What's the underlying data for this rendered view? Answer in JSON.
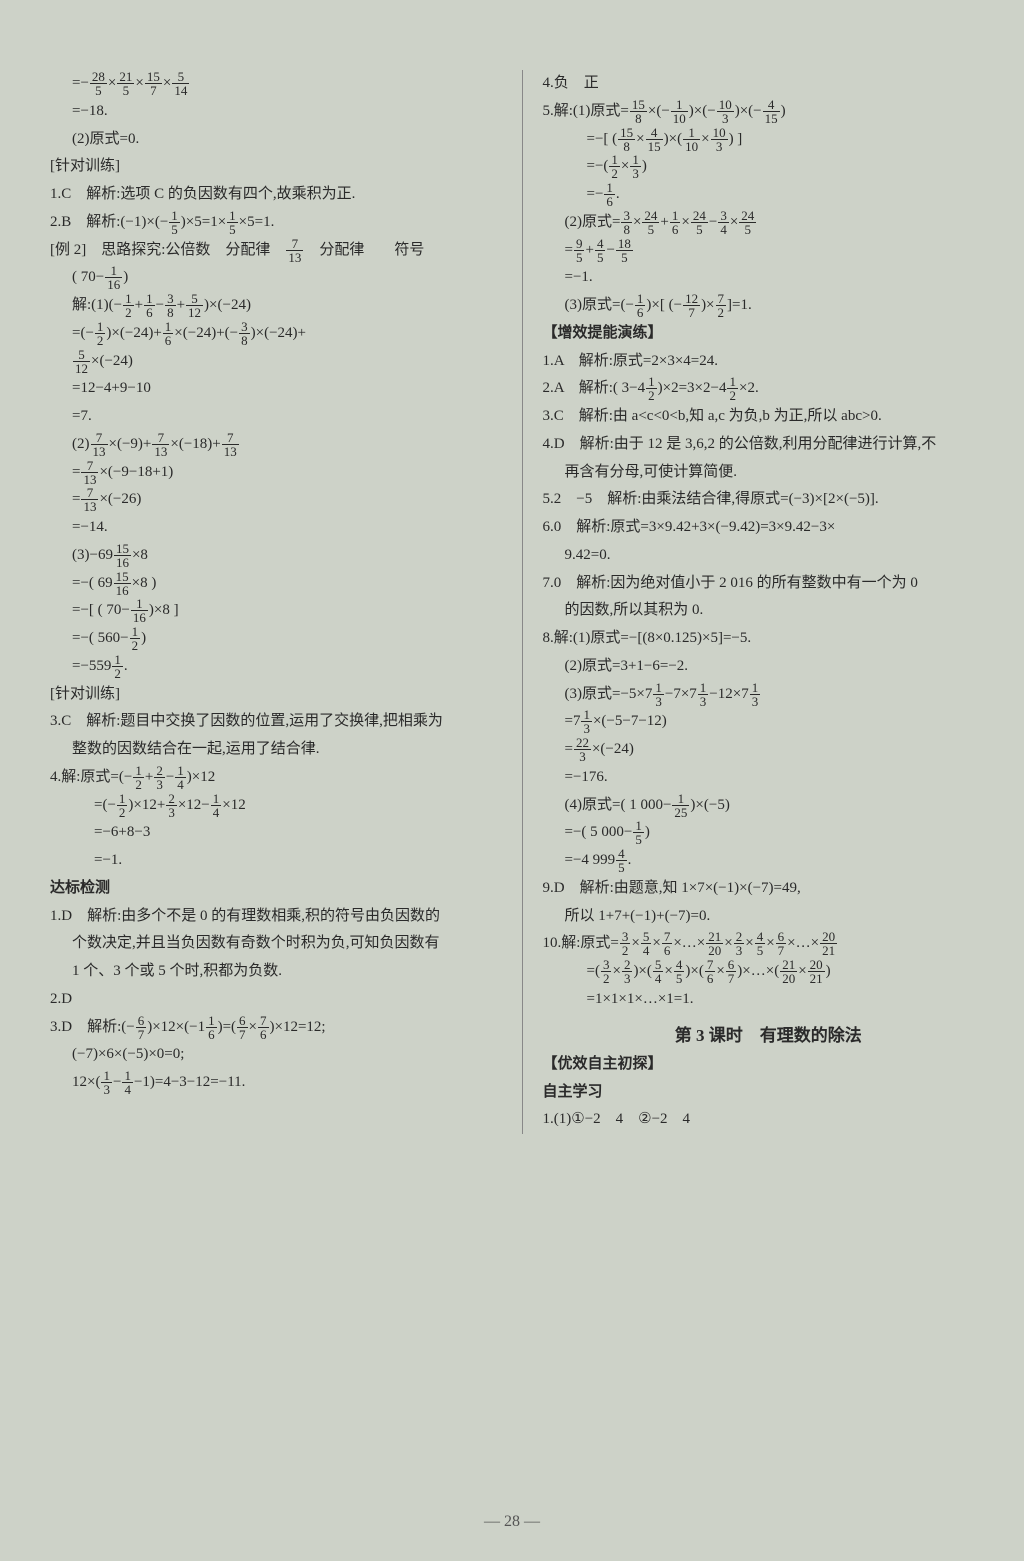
{
  "page_number": "— 28 —",
  "colors": {
    "bg": "#cdd2c8",
    "text": "#2a2a2a",
    "divider": "#888"
  },
  "left": [
    {
      "cls": "indent1",
      "t": "=− 28/5 × 21/5 × 15/7 × 5/14"
    },
    {
      "cls": "indent1",
      "t": "=−18."
    },
    {
      "cls": "indent1",
      "t": "(2)原式=0."
    },
    {
      "cls": "",
      "t": "[针对训练]"
    },
    {
      "cls": "",
      "t": "1.C　解析:选项 C 的负因数有四个,故乘积为正."
    },
    {
      "cls": "",
      "t": "2.B　解析:(−1)×(− 1/5 )×5=1× 1/5 ×5=1."
    },
    {
      "cls": "",
      "t": "[例 2]　思路探究:公倍数　分配律　 7/13 　分配律　　符号"
    },
    {
      "cls": "indent1",
      "t": "( 70− 1/16 )"
    },
    {
      "cls": "indent1",
      "t": "解:(1)(− 1/2 + 1/6 − 3/8 + 5/12 )×(−24)"
    },
    {
      "cls": "indent1",
      "t": "=(− 1/2 )×(−24)+ 1/6 ×(−24)+(− 3/8 )×(−24)+"
    },
    {
      "cls": "indent1",
      "t": " 5/12 ×(−24)"
    },
    {
      "cls": "indent1",
      "t": "=12−4+9−10"
    },
    {
      "cls": "indent1",
      "t": "=7."
    },
    {
      "cls": "indent1",
      "t": "(2) 7/13 ×(−9)+ 7/13 ×(−18)+ 7/13"
    },
    {
      "cls": "indent1",
      "t": "= 7/13 ×(−9−18+1)"
    },
    {
      "cls": "indent1",
      "t": "= 7/13 ×(−26)"
    },
    {
      "cls": "indent1",
      "t": "=−14."
    },
    {
      "cls": "indent1",
      "t": "(3)−69 15/16 ×8"
    },
    {
      "cls": "indent1",
      "t": "=−( 69 15/16 ×8 )"
    },
    {
      "cls": "indent1",
      "t": "=−[ ( 70− 1/16 )×8 ]"
    },
    {
      "cls": "indent1",
      "t": "=−( 560− 1/2 )"
    },
    {
      "cls": "indent1",
      "t": "=−559 1/2 ."
    },
    {
      "cls": "",
      "t": "[针对训练]"
    },
    {
      "cls": "",
      "t": "3.C　解析:题目中交换了因数的位置,运用了交换律,把相乘为"
    },
    {
      "cls": "indent1",
      "t": "整数的因数结合在一起,运用了结合律."
    },
    {
      "cls": "",
      "t": "4.解:原式=(− 1/2 + 2/3 − 1/4 )×12"
    },
    {
      "cls": "indent2",
      "t": "=(− 1/2 )×12+ 2/3 ×12− 1/4 ×12"
    },
    {
      "cls": "indent2",
      "t": "=−6+8−3"
    },
    {
      "cls": "indent2",
      "t": "=−1."
    },
    {
      "cls": "bold",
      "t": "达标检测"
    },
    {
      "cls": "",
      "t": "1.D　解析:由多个不是 0 的有理数相乘,积的符号由负因数的"
    },
    {
      "cls": "indent1",
      "t": "个数决定,并且当负因数有奇数个时积为负,可知负因数有"
    },
    {
      "cls": "indent1",
      "t": "1 个、3 个或 5 个时,积都为负数."
    },
    {
      "cls": "",
      "t": "2.D"
    },
    {
      "cls": "",
      "t": "3.D　解析:(− 6/7 )×12×(−1 1/6 )=( 6/7 × 7/6 )×12=12;"
    },
    {
      "cls": "indent1",
      "t": "(−7)×6×(−5)×0=0;"
    },
    {
      "cls": "indent1",
      "t": "12×( 1/3 − 1/4 −1)=4−3−12=−11."
    }
  ],
  "right": [
    {
      "cls": "",
      "t": "4.负　正"
    },
    {
      "cls": "",
      "t": "5.解:(1)原式= 15/8 ×(− 1/10 )×(− 10/3 )×(− 4/15 )"
    },
    {
      "cls": "indent2",
      "t": "=−[ ( 15/8 × 4/15 )×( 1/10 × 10/3 ) ]"
    },
    {
      "cls": "indent2",
      "t": "=−( 1/2 × 1/3 )"
    },
    {
      "cls": "indent2",
      "t": "=− 1/6 ."
    },
    {
      "cls": "indent1",
      "t": "(2)原式= 3/8 × 24/5 + 1/6 × 24/5 − 3/4 × 24/5"
    },
    {
      "cls": "indent1",
      "t": "= 9/5 + 4/5 − 18/5"
    },
    {
      "cls": "indent1",
      "t": "=−1."
    },
    {
      "cls": "indent1",
      "t": "(3)原式=(− 1/6 )×[ (− 12/7 )× 7/2 ]=1."
    },
    {
      "cls": "bold",
      "t": "【增效提能演练】"
    },
    {
      "cls": "",
      "t": "1.A　解析:原式=2×3×4=24."
    },
    {
      "cls": "",
      "t": "2.A　解析:( 3−4 1/2 )×2=3×2−4 1/2 ×2."
    },
    {
      "cls": "",
      "t": "3.C　解析:由 a<c<0<b,知 a,c 为负,b 为正,所以 abc>0."
    },
    {
      "cls": "",
      "t": "4.D　解析:由于 12 是 3,6,2 的公倍数,利用分配律进行计算,不"
    },
    {
      "cls": "indent1",
      "t": "再含有分母,可使计算简便."
    },
    {
      "cls": "",
      "t": "5.2　−5　解析:由乘法结合律,得原式=(−3)×[2×(−5)]."
    },
    {
      "cls": "",
      "t": "6.0　解析:原式=3×9.42+3×(−9.42)=3×9.42−3×"
    },
    {
      "cls": "indent1",
      "t": "9.42=0."
    },
    {
      "cls": "",
      "t": "7.0　解析:因为绝对值小于 2 016 的所有整数中有一个为 0"
    },
    {
      "cls": "indent1",
      "t": "的因数,所以其积为 0."
    },
    {
      "cls": "",
      "t": "8.解:(1)原式=−[(8×0.125)×5]=−5."
    },
    {
      "cls": "indent1",
      "t": "(2)原式=3+1−6=−2."
    },
    {
      "cls": "indent1",
      "t": "(3)原式=−5×7 1/3 −7×7 1/3 −12×7 1/3"
    },
    {
      "cls": "indent1",
      "t": "=7 1/3 ×(−5−7−12)"
    },
    {
      "cls": "indent1",
      "t": "= 22/3 ×(−24)"
    },
    {
      "cls": "indent1",
      "t": "=−176."
    },
    {
      "cls": "indent1",
      "t": "(4)原式=( 1 000− 1/25 )×(−5)"
    },
    {
      "cls": "indent1",
      "t": "=−( 5 000− 1/5 )"
    },
    {
      "cls": "indent1",
      "t": "=−4 999 4/5 ."
    },
    {
      "cls": "",
      "t": "9.D　解析:由题意,知 1×7×(−1)×(−7)=49,"
    },
    {
      "cls": "indent1",
      "t": "所以 1+7+(−1)+(−7)=0."
    },
    {
      "cls": "",
      "t": "10.解:原式= 3/2 × 5/4 × 7/6 ×…× 21/20 × 2/3 × 4/5 × 6/7 ×…× 20/21"
    },
    {
      "cls": "indent2",
      "t": "=( 3/2 × 2/3 )×( 5/4 × 4/5 )×( 7/6 × 6/7 )×…×( 21/20 × 20/21 )"
    },
    {
      "cls": "indent2",
      "t": "=1×1×1×…×1=1."
    },
    {
      "cls": "center-h",
      "t": "第 3 课时　有理数的除法"
    },
    {
      "cls": "bold",
      "t": "【优效自主初探】"
    },
    {
      "cls": "bold",
      "t": "自主学习"
    },
    {
      "cls": "",
      "t": "1.(1)①−2　4　②−2　4"
    }
  ]
}
